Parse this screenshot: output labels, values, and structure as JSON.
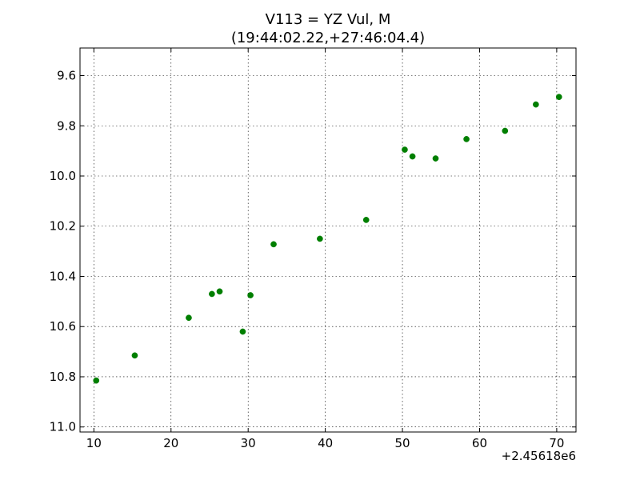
{
  "chart_data": {
    "type": "scatter",
    "title_line1": "V113 = YZ Vul, M",
    "title_line2": "(19:44:02.22,+27:46:04.4)",
    "xlabel": "",
    "ylabel": "",
    "x_offset_label": "+2.45618e6",
    "xlim": [
      8.2,
      72.5
    ],
    "ylim": [
      11.02,
      9.49
    ],
    "y_inverted": true,
    "grid": true,
    "x_ticks": [
      10,
      20,
      30,
      40,
      50,
      60,
      70
    ],
    "x_tick_labels": [
      "10",
      "20",
      "30",
      "40",
      "50",
      "60",
      "70"
    ],
    "y_ticks": [
      9.6,
      9.8,
      10.0,
      10.2,
      10.4,
      10.6,
      10.8,
      11.0
    ],
    "y_tick_labels": [
      "9.6",
      "9.8",
      "10.0",
      "10.2",
      "10.4",
      "10.6",
      "10.8",
      "11.0"
    ],
    "marker_color": "#007f00",
    "series": [
      {
        "points": [
          {
            "x": 10.3,
            "y": 10.815
          },
          {
            "x": 15.3,
            "y": 10.715
          },
          {
            "x": 22.3,
            "y": 10.565
          },
          {
            "x": 25.3,
            "y": 10.47
          },
          {
            "x": 26.3,
            "y": 10.46
          },
          {
            "x": 29.3,
            "y": 10.62
          },
          {
            "x": 30.3,
            "y": 10.475
          },
          {
            "x": 33.3,
            "y": 10.272
          },
          {
            "x": 39.3,
            "y": 10.25
          },
          {
            "x": 45.3,
            "y": 10.175
          },
          {
            "x": 50.3,
            "y": 9.895
          },
          {
            "x": 51.3,
            "y": 9.922
          },
          {
            "x": 54.3,
            "y": 9.93
          },
          {
            "x": 58.3,
            "y": 9.853
          },
          {
            "x": 63.3,
            "y": 9.82
          },
          {
            "x": 67.3,
            "y": 9.715
          },
          {
            "x": 70.3,
            "y": 9.685
          }
        ]
      }
    ]
  }
}
